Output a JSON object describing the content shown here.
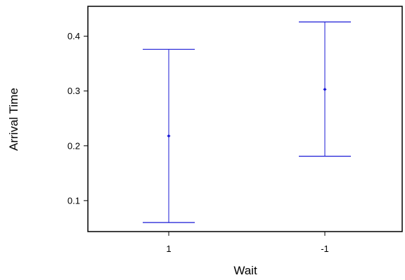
{
  "chart_data": {
    "type": "errorbar",
    "xlabel": "Wait",
    "ylabel": "Arrival Time",
    "categories": [
      "1",
      "-1"
    ],
    "series": [
      {
        "points": [
          {
            "x": "1",
            "y": 0.218,
            "lower": 0.06,
            "upper": 0.376
          },
          {
            "x": "-1",
            "y": 0.303,
            "lower": 0.181,
            "upper": 0.426
          }
        ],
        "color": "#1a1ad6"
      }
    ],
    "ylim": [
      0.0435,
      0.4545
    ],
    "yticks": [
      0.1,
      0.2,
      0.3,
      0.4
    ],
    "ytick_labels": [
      "0.1",
      "0.2",
      "0.3",
      "0.4"
    ],
    "grid": false,
    "legend": "none"
  }
}
